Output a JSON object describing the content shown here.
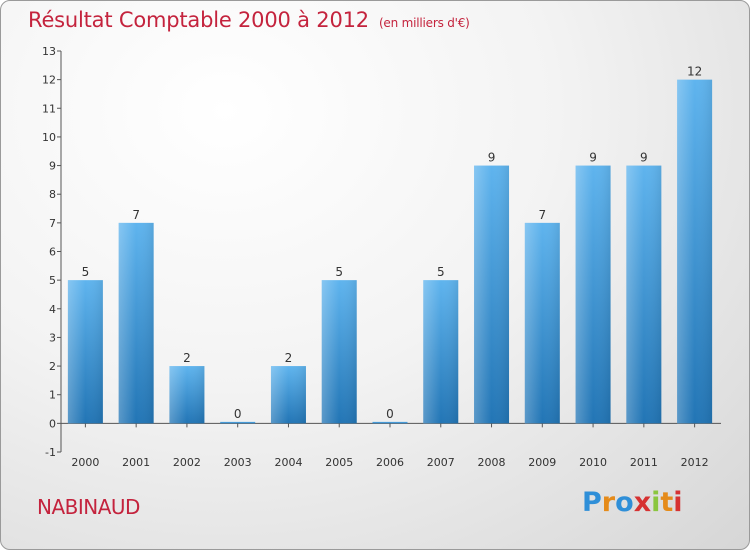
{
  "title": "Résultat Comptable 2000 à 2012",
  "subtitle": "(en milliers d'€)",
  "commune": "NABINAUD",
  "logo": {
    "letters": [
      "P",
      "r",
      "o",
      "x",
      "i",
      "t",
      "i"
    ],
    "colors": [
      "#2f8fd8",
      "#e58b1a",
      "#2f8fd8",
      "#d63232",
      "#8ac63f",
      "#e58b1a",
      "#d63232"
    ]
  },
  "chart_data": {
    "type": "bar",
    "title": "Résultat Comptable 2000 à 2012",
    "subtitle": "(en milliers d'€)",
    "categories": [
      "2000",
      "2001",
      "2002",
      "2003",
      "2004",
      "2005",
      "2006",
      "2007",
      "2008",
      "2009",
      "2010",
      "2011",
      "2012"
    ],
    "values": [
      5,
      7,
      2,
      0,
      2,
      5,
      0,
      5,
      9,
      7,
      9,
      9,
      12
    ],
    "value_labels": [
      "5",
      "7",
      "2",
      "0",
      "2",
      "5",
      "0",
      "5",
      "9",
      "7",
      "9",
      "9",
      "12"
    ],
    "ylim": [
      -1,
      13
    ],
    "yticks": [
      -1,
      0,
      1,
      2,
      3,
      4,
      5,
      6,
      7,
      8,
      9,
      10,
      11,
      12,
      13
    ],
    "bar_color": "#3d9ae0",
    "grid": false,
    "legend": "none"
  }
}
